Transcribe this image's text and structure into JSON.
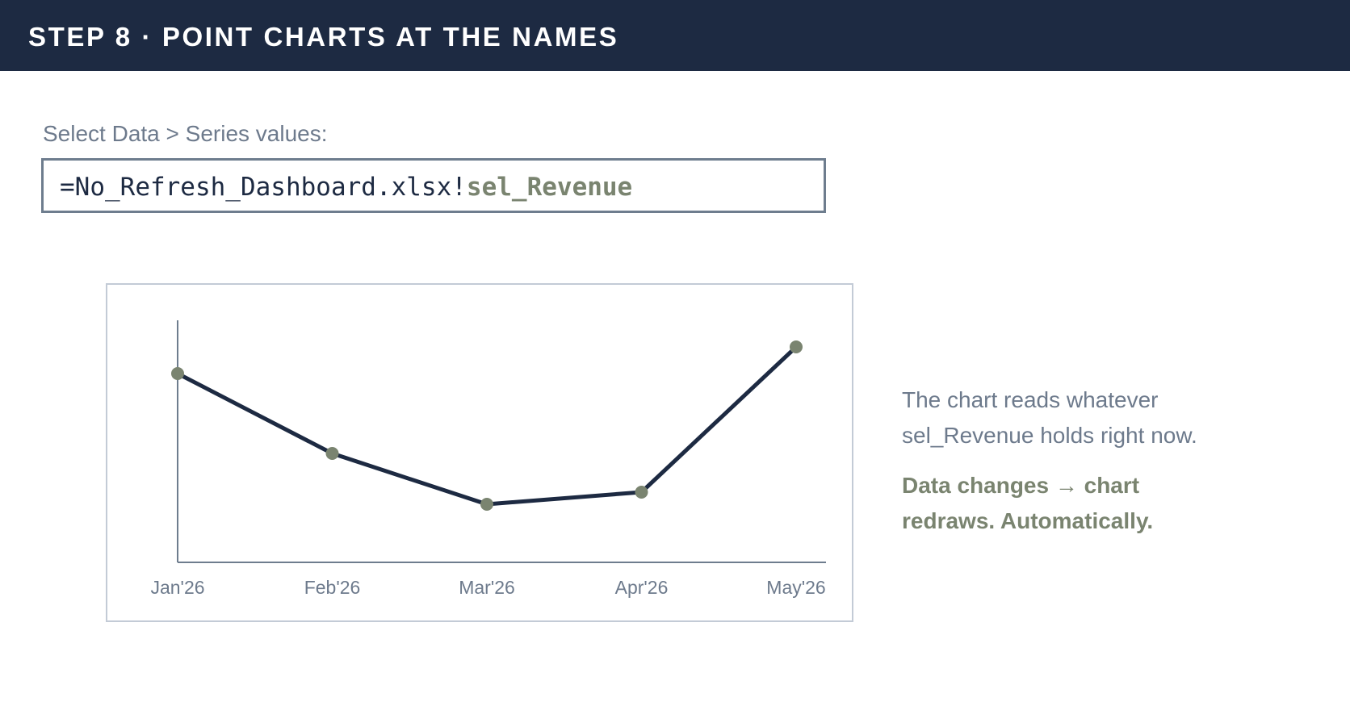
{
  "header": {
    "title": "STEP 8 · POINT CHARTS AT THE NAMES"
  },
  "series_field": {
    "label": "Select Data > Series values:",
    "formula_prefix": "=No_Refresh_Dashboard.xlsx!",
    "formula_name": "sel_Revenue"
  },
  "side_panel": {
    "note_line1": "The chart reads whatever",
    "note_line2": "sel_Revenue holds right now.",
    "emph_line1": "Data changes → chart",
    "emph_line2": "redraws. Automatically."
  },
  "colors": {
    "header_bg": "#1d2a42",
    "line": "#1d2a42",
    "marker": "#7a8470",
    "axis": "#6e7d8e"
  },
  "chart_data": {
    "type": "line",
    "categories": [
      "Jan'26",
      "Feb'26",
      "Mar'26",
      "Apr'26",
      "May'26"
    ],
    "values": [
      78,
      45,
      24,
      29,
      89
    ],
    "ylim": [
      0,
      100
    ],
    "title": "",
    "xlabel": "",
    "ylabel": "",
    "grid": false,
    "y_tick_labels": false
  }
}
